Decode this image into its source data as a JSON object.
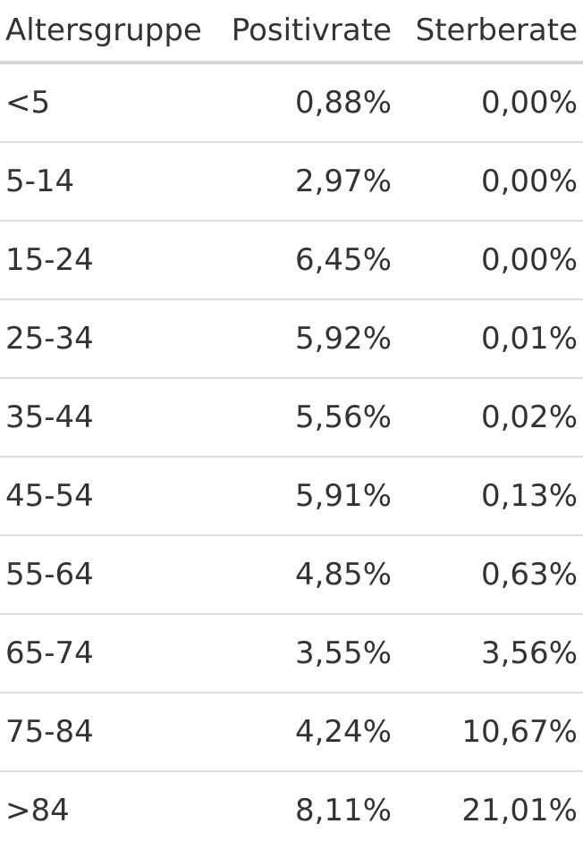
{
  "table": {
    "header": [
      "Altersgruppe",
      "Positivrate",
      "Sterberate"
    ],
    "rows": [
      [
        "<5",
        "0,88%",
        "0,00%"
      ],
      [
        "5-14",
        "2,97%",
        "0,00%"
      ],
      [
        "15-24",
        "6,45%",
        "0,00%"
      ],
      [
        "25-34",
        "5,92%",
        "0,01%"
      ],
      [
        "35-44",
        "5,56%",
        "0,02%"
      ],
      [
        "45-54",
        "5,91%",
        "0,13%"
      ],
      [
        "55-64",
        "4,85%",
        "0,63%"
      ],
      [
        "65-74",
        "3,55%",
        "3,56%"
      ],
      [
        "75-84",
        "4,24%",
        "10,67%"
      ],
      [
        ">84",
        "8,11%",
        "21,01%"
      ]
    ]
  }
}
